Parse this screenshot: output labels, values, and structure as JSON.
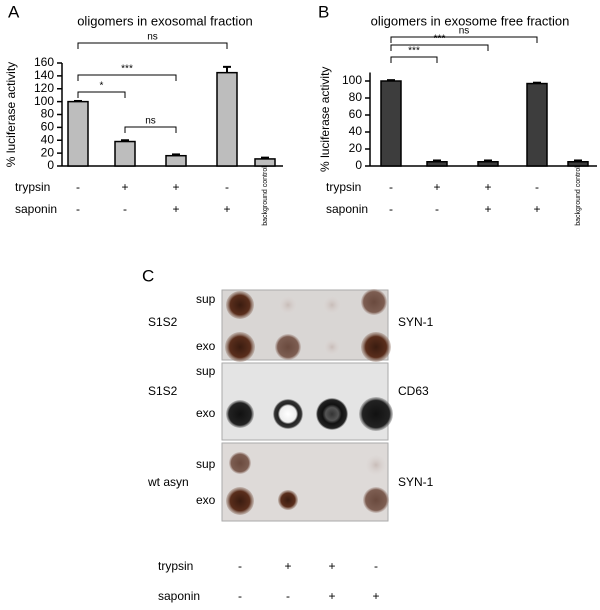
{
  "chart_data": [
    {
      "type": "bar",
      "panel": "A",
      "title": "oligomers in exosomal fraction",
      "y_label": "% luciferase activity",
      "categories": [
        null,
        null,
        null,
        null,
        "background control"
      ],
      "values": [
        100,
        38,
        16,
        145,
        11
      ],
      "errors": [
        1,
        2,
        2,
        9,
        2
      ],
      "color": "#bdbdbd",
      "ylim": [
        0,
        160
      ],
      "yticks": [
        0,
        20,
        40,
        60,
        80,
        100,
        120,
        140,
        160
      ],
      "conditions": [
        {
          "name": "trypsin",
          "values": [
            "-",
            "+",
            "+",
            "-"
          ]
        },
        {
          "name": "saponin",
          "values": [
            "-",
            "-",
            "+",
            "+"
          ]
        }
      ],
      "significance": [
        {
          "from": 0,
          "to": 1,
          "label": "*"
        },
        {
          "from": 0,
          "to": 2,
          "label": "***"
        },
        {
          "from": 1,
          "to": 2,
          "label": "ns"
        },
        {
          "from": 0,
          "to": 3,
          "label": "ns"
        }
      ]
    },
    {
      "type": "bar",
      "panel": "B",
      "title": "oligomers in exosome free fraction",
      "y_label": "% luciferase activity",
      "categories": [
        null,
        null,
        null,
        null,
        "background control"
      ],
      "values": [
        100,
        5,
        5,
        97,
        5
      ],
      "errors": [
        1,
        1.5,
        1.5,
        1,
        1.5
      ],
      "color": "#3d3d3d",
      "ylim": [
        0,
        110
      ],
      "yticks": [
        0,
        20,
        40,
        60,
        80,
        100
      ],
      "conditions": [
        {
          "name": "trypsin",
          "values": [
            "-",
            "+",
            "+",
            "-"
          ]
        },
        {
          "name": "saponin",
          "values": [
            "-",
            "-",
            "+",
            "+"
          ]
        }
      ],
      "significance": [
        {
          "from": 0,
          "to": 1,
          "label": "***"
        },
        {
          "from": 0,
          "to": 2,
          "label": "***"
        },
        {
          "from": 0,
          "to": 3,
          "label": "ns"
        }
      ]
    }
  ],
  "panel_c": {
    "label": "C",
    "blots": [
      {
        "construct": "S1S2",
        "rows": [
          "sup",
          "exo"
        ],
        "antibody": "SYN-1"
      },
      {
        "construct": "S1S2",
        "rows": [
          "sup",
          "exo"
        ],
        "antibody": "CD63"
      },
      {
        "construct": "wt asyn",
        "rows": [
          "sup",
          "exo"
        ],
        "antibody": "SYN-1"
      }
    ],
    "conditions": [
      {
        "name": "trypsin",
        "values": [
          "-",
          "+",
          "+",
          "-"
        ]
      },
      {
        "name": "saponin",
        "values": [
          "-",
          "-",
          "+",
          "+"
        ]
      }
    ]
  }
}
